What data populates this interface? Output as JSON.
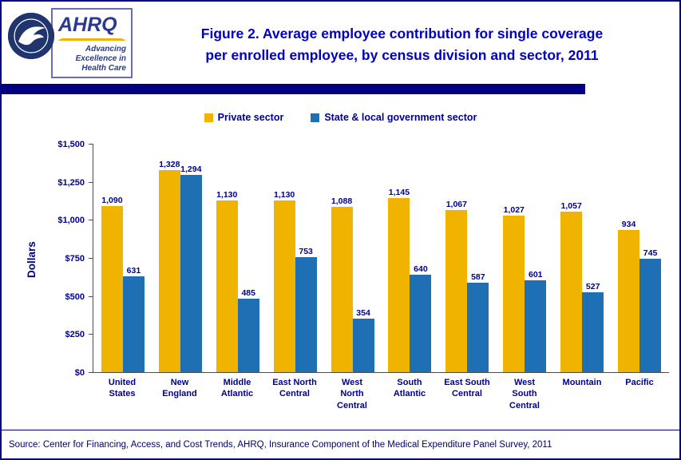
{
  "header": {
    "ahrq": {
      "name": "AHRQ",
      "tagline": [
        "Advancing",
        "Excellence in",
        "Health Care"
      ]
    },
    "title_line1": "Figure 2. Average employee contribution for single coverage",
    "title_line2": "per enrolled employee, by census division and sector, 2011"
  },
  "chart_data": {
    "type": "bar",
    "title": "Figure 2. Average employee contribution for single coverage per enrolled employee, by census division and sector, 2011",
    "categories": [
      "United States",
      "New England",
      "Middle Atlantic",
      "East North Central",
      "West North Central",
      "South Atlantic",
      "East South Central",
      "West South Central",
      "Mountain",
      "Pacific"
    ],
    "series": [
      {
        "name": "Private sector",
        "color": "#F0B400",
        "values": [
          1090,
          1328,
          1130,
          1130,
          1088,
          1145,
          1067,
          1027,
          1057,
          934
        ]
      },
      {
        "name": "State & local government sector",
        "color": "#1F6FB5",
        "values": [
          631,
          1294,
          485,
          753,
          354,
          640,
          587,
          601,
          527,
          745
        ]
      }
    ],
    "xlabel": "",
    "ylabel": "Dollars",
    "ylim": [
      0,
      1500
    ],
    "ytick_interval": 250,
    "yticks": [
      "$0",
      "$250",
      "$500",
      "$750",
      "$1,000",
      "$1,250",
      "$1,500"
    ],
    "grid": false,
    "legend_position": "top"
  },
  "footer": {
    "source": "Source: Center for Financing, Access, and Cost Trends, AHRQ, Insurance Component of the Medical Expenditure Panel Survey, 2011"
  },
  "colors": {
    "page_border_navy": "#000080",
    "title_blue": "#0000BF",
    "label_navy": "#00008B",
    "private_sector_gold": "#F0B400",
    "government_sector_blue": "#1F6FB5"
  }
}
